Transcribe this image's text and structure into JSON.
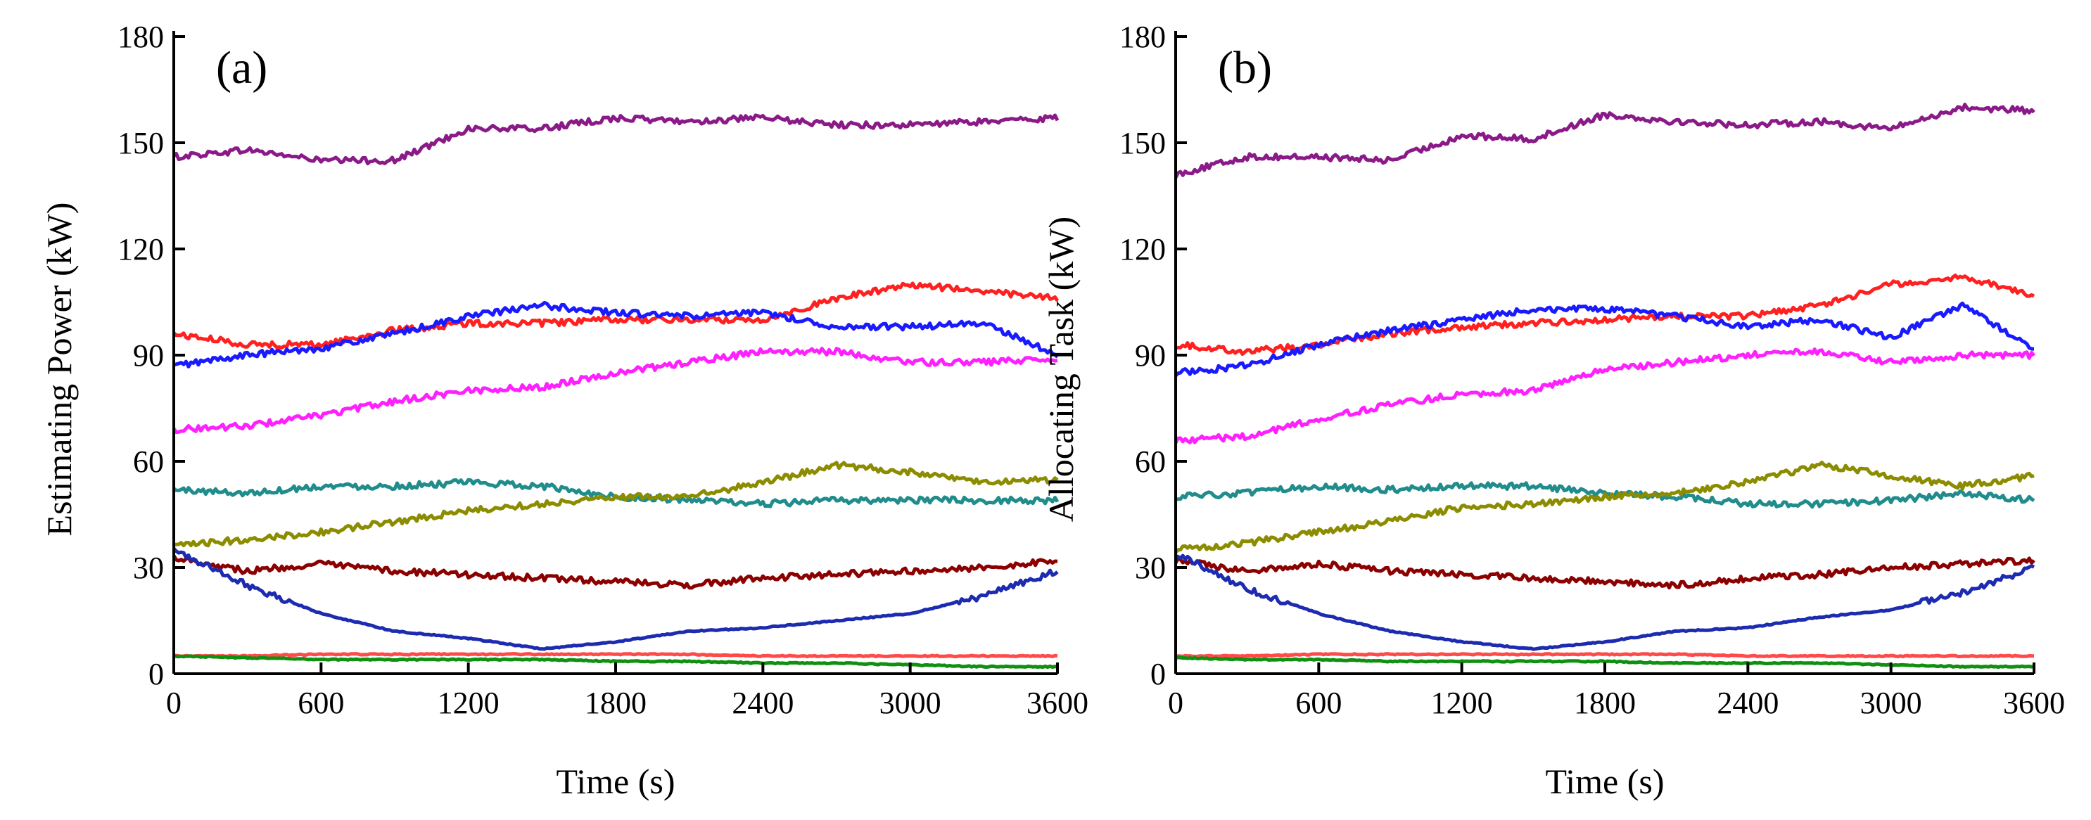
{
  "chart_data": [
    {
      "type": "line",
      "panel_label": "(a)",
      "xlabel": "Time (s)",
      "ylabel": "Estimating Power (kW)",
      "xlim": [
        0,
        3600
      ],
      "ylim": [
        0,
        180
      ],
      "xticks": [
        0,
        600,
        1200,
        1800,
        2400,
        3000,
        3600
      ],
      "yticks": [
        0,
        30,
        60,
        90,
        120,
        150,
        180
      ],
      "x": [
        0,
        300,
        600,
        900,
        1200,
        1500,
        1800,
        2100,
        2400,
        2700,
        3000,
        3300,
        3600
      ],
      "series": [
        {
          "name": "purple",
          "color": "#8b1a89",
          "values": [
            146,
            148,
            145,
            145,
            154,
            154,
            157,
            156,
            157,
            155,
            155,
            156,
            157
          ]
        },
        {
          "name": "red",
          "color": "#ff2020",
          "values": [
            96,
            93,
            93,
            97,
            99,
            99,
            100,
            100,
            100,
            106,
            110,
            108,
            106
          ]
        },
        {
          "name": "blue",
          "color": "#1a1aff",
          "values": [
            87,
            90,
            92,
            96,
            101,
            104,
            102,
            101,
            102,
            98,
            98,
            99,
            90
          ]
        },
        {
          "name": "magenta",
          "color": "#ff20ff",
          "values": [
            69,
            70,
            73,
            77,
            80,
            81,
            85,
            88,
            91,
            91,
            88,
            88,
            89
          ]
        },
        {
          "name": "teal",
          "color": "#208c8c",
          "values": [
            52,
            51,
            53,
            53,
            54,
            53,
            50,
            49,
            48,
            49,
            49,
            49,
            49
          ]
        },
        {
          "name": "olive",
          "color": "#8c8c00",
          "values": [
            36,
            38,
            40,
            43,
            46,
            48,
            50,
            50,
            54,
            59,
            57,
            54,
            55
          ]
        },
        {
          "name": "dark-red",
          "color": "#8b0000",
          "values": [
            33,
            29,
            31,
            29,
            28,
            27,
            26,
            25,
            27,
            28,
            29,
            30,
            32
          ]
        },
        {
          "name": "navy",
          "color": "#1c2bb0",
          "values": [
            35,
            25,
            17,
            12,
            10,
            7,
            9,
            12,
            13,
            15,
            17,
            22,
            29
          ]
        },
        {
          "name": "light-red",
          "color": "#ff4a4a",
          "values": [
            5,
            5,
            5.5,
            5.5,
            5.5,
            5.5,
            5.5,
            5.5,
            5,
            5,
            5,
            5,
            5
          ]
        },
        {
          "name": "green",
          "color": "#109010",
          "values": [
            5,
            4.5,
            4,
            4,
            4,
            4,
            3.5,
            3.5,
            3,
            3,
            2.5,
            2,
            2
          ]
        }
      ]
    },
    {
      "type": "line",
      "panel_label": "(b)",
      "xlabel": "Time (s)",
      "ylabel": "Allocating Task (kW)",
      "xlim": [
        0,
        3600
      ],
      "ylim": [
        0,
        180
      ],
      "xticks": [
        0,
        600,
        1200,
        1800,
        2400,
        3000,
        3600
      ],
      "yticks": [
        0,
        30,
        60,
        90,
        120,
        150,
        180
      ],
      "x": [
        0,
        300,
        600,
        900,
        1200,
        1500,
        1800,
        2100,
        2400,
        2700,
        3000,
        3300,
        3600
      ],
      "series": [
        {
          "name": "purple",
          "color": "#8b1a89",
          "values": [
            141,
            146,
            146,
            145,
            152,
            151,
            158,
            156,
            155,
            156,
            154,
            160,
            159
          ]
        },
        {
          "name": "red",
          "color": "#ff2020",
          "values": [
            93,
            91,
            93,
            96,
            98,
            99,
            100,
            101,
            101,
            104,
            110,
            112,
            107
          ]
        },
        {
          "name": "blue",
          "color": "#1a1aff",
          "values": [
            85,
            87,
            93,
            97,
            100,
            103,
            103,
            101,
            98,
            100,
            95,
            104,
            92
          ]
        },
        {
          "name": "magenta",
          "color": "#ff20ff",
          "values": [
            66,
            67,
            72,
            76,
            79,
            80,
            86,
            88,
            90,
            91,
            88,
            90,
            90
          ]
        },
        {
          "name": "teal",
          "color": "#208c8c",
          "values": [
            50,
            51,
            53,
            52,
            53,
            53,
            51,
            50,
            48,
            48,
            49,
            51,
            49
          ]
        },
        {
          "name": "olive",
          "color": "#8c8c00",
          "values": [
            35,
            37,
            40,
            43,
            47,
            48,
            50,
            51,
            54,
            59,
            56,
            53,
            56
          ]
        },
        {
          "name": "dark-red",
          "color": "#8b0000",
          "values": [
            32,
            29,
            31,
            29,
            28,
            27,
            26,
            25,
            27,
            28,
            30,
            31,
            32
          ]
        },
        {
          "name": "navy",
          "color": "#1c2bb0",
          "values": [
            34,
            24,
            17,
            12,
            9,
            7,
            9,
            12,
            13,
            16,
            18,
            23,
            30
          ]
        },
        {
          "name": "light-red",
          "color": "#ff4a4a",
          "values": [
            5,
            5,
            5.5,
            5.5,
            5.5,
            5.5,
            5.5,
            5.5,
            5,
            5,
            5,
            5,
            5
          ]
        },
        {
          "name": "green",
          "color": "#109010",
          "values": [
            4.5,
            4,
            4,
            3.5,
            3.5,
            3.5,
            3.5,
            3,
            3,
            3,
            2.5,
            2,
            2
          ]
        }
      ]
    }
  ]
}
